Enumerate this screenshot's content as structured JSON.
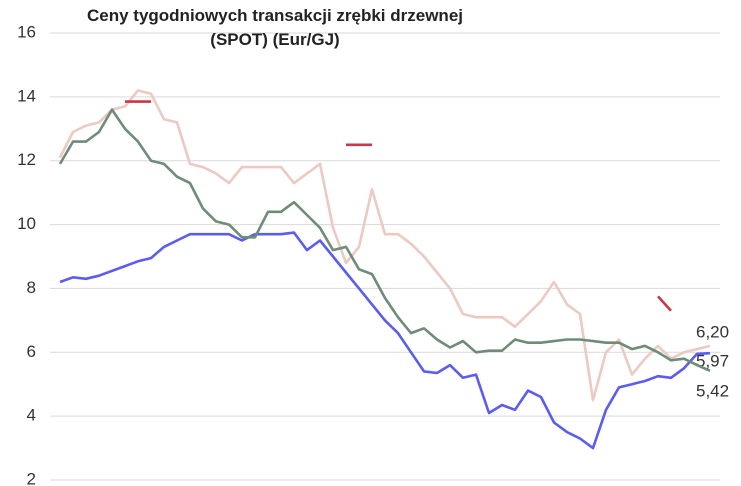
{
  "chart_data": {
    "type": "line",
    "title": "Ceny tygodniowych transakcji zrębki drzewnej (SPOT) (Eur/GJ)",
    "categories": [
      null,
      null,
      null,
      null,
      null,
      null,
      null,
      null,
      null,
      null,
      null,
      null,
      null,
      null,
      null,
      null,
      null,
      null,
      null,
      null,
      null,
      null,
      null,
      null,
      null,
      null,
      null,
      null,
      null,
      null,
      null,
      null,
      null,
      null,
      null,
      null,
      null,
      null,
      null,
      null,
      null,
      null,
      null,
      null,
      null,
      null,
      null,
      null,
      null,
      null,
      null
    ],
    "ylim": [
      2,
      16
    ],
    "yticks": [
      2,
      4,
      6,
      8,
      10,
      12,
      14,
      16
    ],
    "grid": true,
    "series": [
      {
        "color": "#ecc9c1",
        "values": [
          12.1,
          12.9,
          13.1,
          13.2,
          13.6,
          13.7,
          14.2,
          14.1,
          13.3,
          13.2,
          11.9,
          11.8,
          11.6,
          11.3,
          11.8,
          11.8,
          11.8,
          11.8,
          11.3,
          11.6,
          11.9,
          9.9,
          8.8,
          9.3,
          11.1,
          9.7,
          9.7,
          9.4,
          9.0,
          8.5,
          8.0,
          7.2,
          7.1,
          7.1,
          7.1,
          6.8,
          7.2,
          7.6,
          8.2,
          7.5,
          7.2,
          4.5,
          6.0,
          6.4,
          5.3,
          5.8,
          6.2,
          5.8,
          6.0,
          6.1,
          6.2
        ],
        "value_labels": [
          null,
          null,
          null,
          null,
          null,
          null,
          null,
          null,
          null,
          null,
          null,
          null,
          null,
          null,
          null,
          null,
          null,
          null,
          null,
          null,
          null,
          null,
          null,
          null,
          null,
          null,
          null,
          null,
          null,
          null,
          null,
          null,
          null,
          null,
          null,
          null,
          null,
          null,
          null,
          null,
          null,
          null,
          null,
          null,
          null,
          null,
          null,
          null,
          null,
          null,
          "6,20"
        ]
      },
      {
        "color": "#5b5cf0",
        "values": [
          8.2,
          8.35,
          8.3,
          8.4,
          8.55,
          8.7,
          8.85,
          8.95,
          9.3,
          9.5,
          9.7,
          9.7,
          9.7,
          9.7,
          9.5,
          9.7,
          9.7,
          9.7,
          9.75,
          9.2,
          9.5,
          9.0,
          8.5,
          8.0,
          7.5,
          7.0,
          6.6,
          6.0,
          5.4,
          5.35,
          5.6,
          5.2,
          5.3,
          4.1,
          4.35,
          4.2,
          4.8,
          4.6,
          3.8,
          3.5,
          3.3,
          3.0,
          4.2,
          4.9,
          5.0,
          5.1,
          5.25,
          5.2,
          5.5,
          5.95,
          5.97
        ],
        "value_labels": [
          null,
          null,
          null,
          null,
          null,
          null,
          null,
          null,
          null,
          null,
          null,
          null,
          null,
          null,
          null,
          null,
          null,
          null,
          null,
          null,
          null,
          null,
          null,
          null,
          null,
          null,
          null,
          null,
          null,
          null,
          null,
          null,
          null,
          null,
          null,
          null,
          null,
          null,
          null,
          null,
          null,
          null,
          null,
          null,
          null,
          null,
          null,
          null,
          null,
          null,
          "5,97"
        ]
      },
      {
        "color": "#6e8c78",
        "values": [
          11.9,
          12.6,
          12.6,
          12.9,
          13.6,
          13.0,
          12.6,
          12.0,
          11.9,
          11.5,
          11.3,
          10.5,
          10.1,
          10.0,
          9.6,
          9.6,
          10.4,
          10.4,
          10.7,
          10.3,
          9.9,
          9.2,
          9.3,
          8.6,
          8.45,
          7.7,
          7.1,
          6.6,
          6.75,
          6.4,
          6.15,
          6.35,
          6.0,
          6.05,
          6.05,
          6.4,
          6.3,
          6.3,
          6.35,
          6.4,
          6.4,
          6.35,
          6.3,
          6.3,
          6.1,
          6.2,
          6.0,
          5.75,
          5.8,
          5.6,
          5.42
        ],
        "value_labels": [
          null,
          null,
          null,
          null,
          null,
          null,
          null,
          null,
          null,
          null,
          null,
          null,
          null,
          null,
          null,
          null,
          null,
          null,
          null,
          null,
          null,
          null,
          null,
          null,
          null,
          null,
          null,
          null,
          null,
          null,
          null,
          null,
          null,
          null,
          null,
          null,
          null,
          null,
          null,
          null,
          null,
          null,
          null,
          null,
          null,
          null,
          null,
          null,
          null,
          null,
          "5,42"
        ]
      },
      {
        "color": "#c9384a",
        "values": [
          null,
          null,
          null,
          null,
          null,
          13.85,
          13.85,
          13.85,
          null,
          null,
          null,
          null,
          null,
          null,
          null,
          null,
          null,
          null,
          null,
          null,
          null,
          null,
          12.5,
          12.5,
          12.5,
          null,
          null,
          null,
          null,
          null,
          null,
          null,
          null,
          null,
          null,
          null,
          null,
          null,
          null,
          null,
          null,
          null,
          null,
          null,
          null,
          null,
          7.75,
          7.3,
          null,
          null,
          null
        ]
      }
    ]
  }
}
